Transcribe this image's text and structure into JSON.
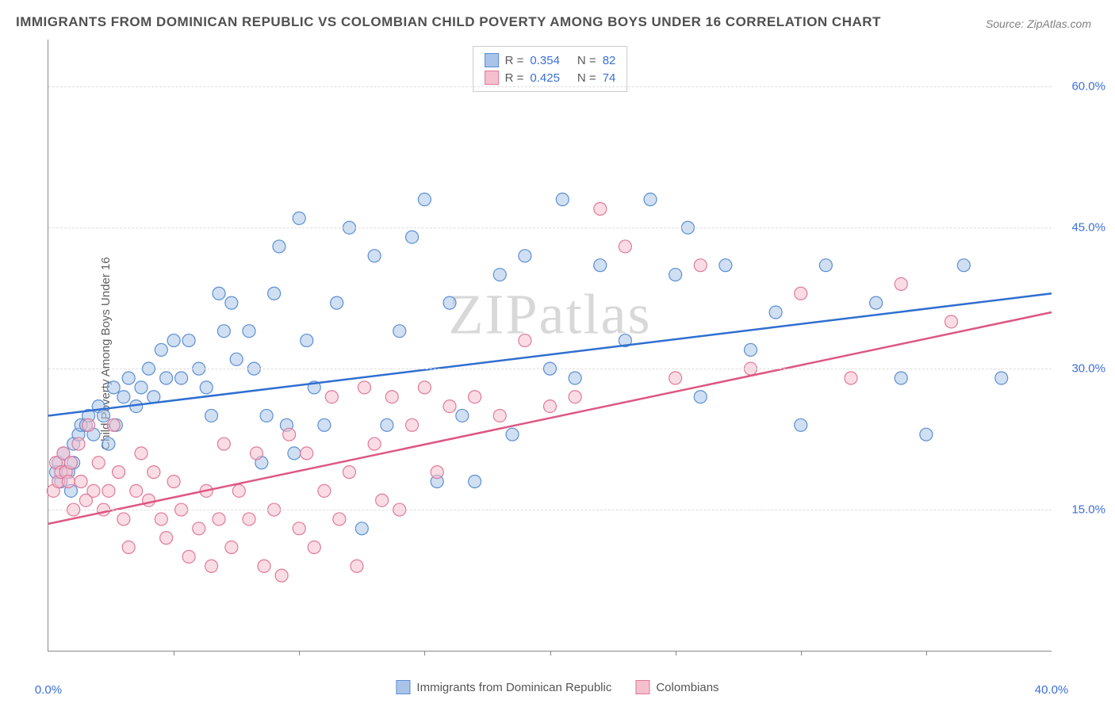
{
  "title": "IMMIGRANTS FROM DOMINICAN REPUBLIC VS COLOMBIAN CHILD POVERTY AMONG BOYS UNDER 16 CORRELATION CHART",
  "source_label": "Source: ZipAtlas.com",
  "y_axis_label": "Child Poverty Among Boys Under 16",
  "watermark": "ZIPatlas",
  "chart": {
    "type": "scatter",
    "xlim": [
      0,
      40
    ],
    "ylim": [
      0,
      65
    ],
    "x_ticks": [
      0,
      40
    ],
    "x_tick_labels": [
      "0.0%",
      "40.0%"
    ],
    "x_minor_ticks": [
      5,
      10,
      15,
      20,
      25,
      30,
      35
    ],
    "y_ticks": [
      15,
      30,
      45,
      60
    ],
    "y_tick_labels": [
      "15.0%",
      "30.0%",
      "45.0%",
      "60.0%"
    ],
    "background_color": "#ffffff",
    "grid_color": "#dddddd",
    "marker_radius": 8,
    "marker_stroke_width": 1.2,
    "line_width": 2.5,
    "series": [
      {
        "name": "Immigrants from Dominican Republic",
        "r_value": "0.354",
        "n_value": "82",
        "fill_color": "#a9c4e8",
        "stroke_color": "#5b8fd4",
        "fill_opacity": 0.55,
        "trend_line": {
          "x1": 0,
          "y1": 25,
          "x2": 40,
          "y2": 38,
          "color": "#2f6fd0"
        },
        "points": [
          [
            0.3,
            19
          ],
          [
            0.4,
            20
          ],
          [
            0.5,
            18
          ],
          [
            0.6,
            21
          ],
          [
            0.8,
            19
          ],
          [
            0.9,
            17
          ],
          [
            1.0,
            22
          ],
          [
            1.0,
            20
          ],
          [
            1.2,
            23
          ],
          [
            1.3,
            24
          ],
          [
            1.5,
            24
          ],
          [
            1.6,
            25
          ],
          [
            1.8,
            23
          ],
          [
            2.0,
            26
          ],
          [
            2.2,
            25
          ],
          [
            2.4,
            22
          ],
          [
            2.6,
            28
          ],
          [
            2.7,
            24
          ],
          [
            3.0,
            27
          ],
          [
            3.2,
            29
          ],
          [
            3.5,
            26
          ],
          [
            3.7,
            28
          ],
          [
            4.0,
            30
          ],
          [
            4.2,
            27
          ],
          [
            4.5,
            32
          ],
          [
            4.7,
            29
          ],
          [
            5.0,
            33
          ],
          [
            5.3,
            29
          ],
          [
            5.6,
            33
          ],
          [
            6.0,
            30
          ],
          [
            6.3,
            28
          ],
          [
            6.5,
            25
          ],
          [
            6.8,
            38
          ],
          [
            7.0,
            34
          ],
          [
            7.3,
            37
          ],
          [
            7.5,
            31
          ],
          [
            8.0,
            34
          ],
          [
            8.2,
            30
          ],
          [
            8.5,
            20
          ],
          [
            8.7,
            25
          ],
          [
            9.0,
            38
          ],
          [
            9.2,
            43
          ],
          [
            9.5,
            24
          ],
          [
            9.8,
            21
          ],
          [
            10.0,
            46
          ],
          [
            10.3,
            33
          ],
          [
            10.6,
            28
          ],
          [
            11.0,
            24
          ],
          [
            11.5,
            37
          ],
          [
            12.0,
            45
          ],
          [
            12.5,
            13
          ],
          [
            13.0,
            42
          ],
          [
            13.5,
            24
          ],
          [
            14.0,
            34
          ],
          [
            14.5,
            44
          ],
          [
            15.0,
            48
          ],
          [
            15.5,
            18
          ],
          [
            16.0,
            37
          ],
          [
            16.5,
            25
          ],
          [
            17.0,
            18
          ],
          [
            18.0,
            40
          ],
          [
            18.5,
            23
          ],
          [
            19.0,
            42
          ],
          [
            20.0,
            30
          ],
          [
            20.5,
            48
          ],
          [
            21.0,
            29
          ],
          [
            22.0,
            41
          ],
          [
            23.0,
            33
          ],
          [
            24.0,
            48
          ],
          [
            25.0,
            40
          ],
          [
            25.5,
            45
          ],
          [
            26.0,
            27
          ],
          [
            27.0,
            41
          ],
          [
            28.0,
            32
          ],
          [
            29.0,
            36
          ],
          [
            30.0,
            24
          ],
          [
            31.0,
            41
          ],
          [
            33.0,
            37
          ],
          [
            34.0,
            29
          ],
          [
            35.0,
            23
          ],
          [
            36.5,
            41
          ],
          [
            38.0,
            29
          ]
        ]
      },
      {
        "name": "Colombians",
        "r_value": "0.425",
        "n_value": "74",
        "fill_color": "#f5c0cd",
        "stroke_color": "#e07a99",
        "fill_opacity": 0.55,
        "trend_line": {
          "x1": 0,
          "y1": 13.5,
          "x2": 40,
          "y2": 36,
          "color": "#dd5782"
        },
        "points": [
          [
            0.2,
            17
          ],
          [
            0.3,
            20
          ],
          [
            0.4,
            18
          ],
          [
            0.5,
            19
          ],
          [
            0.6,
            21
          ],
          [
            0.7,
            19
          ],
          [
            0.8,
            18
          ],
          [
            0.9,
            20
          ],
          [
            1.0,
            15
          ],
          [
            1.2,
            22
          ],
          [
            1.3,
            18
          ],
          [
            1.5,
            16
          ],
          [
            1.6,
            24
          ],
          [
            1.8,
            17
          ],
          [
            2.0,
            20
          ],
          [
            2.2,
            15
          ],
          [
            2.4,
            17
          ],
          [
            2.6,
            24
          ],
          [
            2.8,
            19
          ],
          [
            3.0,
            14
          ],
          [
            3.2,
            11
          ],
          [
            3.5,
            17
          ],
          [
            3.7,
            21
          ],
          [
            4.0,
            16
          ],
          [
            4.2,
            19
          ],
          [
            4.5,
            14
          ],
          [
            4.7,
            12
          ],
          [
            5.0,
            18
          ],
          [
            5.3,
            15
          ],
          [
            5.6,
            10
          ],
          [
            6.0,
            13
          ],
          [
            6.3,
            17
          ],
          [
            6.5,
            9
          ],
          [
            6.8,
            14
          ],
          [
            7.0,
            22
          ],
          [
            7.3,
            11
          ],
          [
            7.6,
            17
          ],
          [
            8.0,
            14
          ],
          [
            8.3,
            21
          ],
          [
            8.6,
            9
          ],
          [
            9.0,
            15
          ],
          [
            9.3,
            8
          ],
          [
            9.6,
            23
          ],
          [
            10.0,
            13
          ],
          [
            10.3,
            21
          ],
          [
            10.6,
            11
          ],
          [
            11.0,
            17
          ],
          [
            11.3,
            27
          ],
          [
            11.6,
            14
          ],
          [
            12.0,
            19
          ],
          [
            12.3,
            9
          ],
          [
            12.6,
            28
          ],
          [
            13.0,
            22
          ],
          [
            13.3,
            16
          ],
          [
            13.7,
            27
          ],
          [
            14.0,
            15
          ],
          [
            14.5,
            24
          ],
          [
            15.0,
            28
          ],
          [
            15.5,
            19
          ],
          [
            16.0,
            26
          ],
          [
            17.0,
            27
          ],
          [
            18.0,
            25
          ],
          [
            19.0,
            33
          ],
          [
            20.0,
            26
          ],
          [
            21.0,
            27
          ],
          [
            22.0,
            47
          ],
          [
            23.0,
            43
          ],
          [
            25.0,
            29
          ],
          [
            26.0,
            41
          ],
          [
            28.0,
            30
          ],
          [
            30.0,
            38
          ],
          [
            32.0,
            29
          ],
          [
            34.0,
            39
          ],
          [
            36.0,
            35
          ]
        ]
      }
    ]
  },
  "legend_bottom": [
    {
      "label": "Immigrants from Dominican Republic",
      "fill": "#a9c4e8",
      "stroke": "#5b8fd4"
    },
    {
      "label": "Colombians",
      "fill": "#f5c0cd",
      "stroke": "#e07a99"
    }
  ]
}
